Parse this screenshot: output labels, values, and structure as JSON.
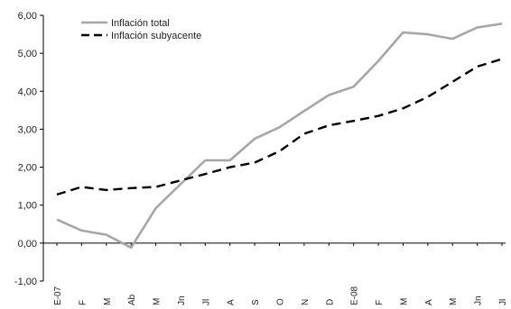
{
  "chart_data": {
    "type": "line",
    "categories": [
      "E-07",
      "F",
      "M",
      "Ab",
      "M",
      "Jn",
      "Jl",
      "A",
      "S",
      "O",
      "N",
      "D",
      "E-08",
      "F",
      "M",
      "A",
      "M",
      "Jn",
      "Jl"
    ],
    "ylim": [
      -1,
      6
    ],
    "yticks": [
      "-1,00",
      "0,00",
      "1,00",
      "2,00",
      "3,00",
      "4,00",
      "5,00",
      "6,00"
    ],
    "grid": false,
    "legend_position": "top-left",
    "series": [
      {
        "name": "Inflación total",
        "style": "solid",
        "color": "#a6a6a6",
        "values": [
          0.62,
          0.33,
          0.22,
          -0.12,
          0.92,
          1.55,
          2.18,
          2.18,
          2.75,
          3.05,
          3.48,
          3.9,
          4.12,
          4.8,
          5.55,
          5.5,
          5.38,
          5.68,
          5.78
        ]
      },
      {
        "name": "Inflación subyacente",
        "style": "dashed",
        "color": "#000000",
        "values": [
          1.28,
          1.48,
          1.4,
          1.45,
          1.48,
          1.65,
          1.82,
          2.0,
          2.12,
          2.42,
          2.88,
          3.1,
          3.22,
          3.35,
          3.55,
          3.85,
          4.25,
          4.65,
          4.85
        ]
      }
    ]
  }
}
